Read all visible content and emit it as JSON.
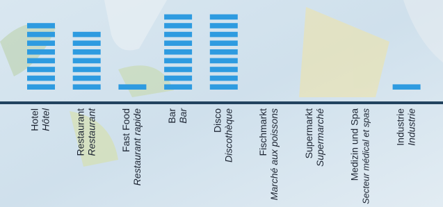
{
  "chart_data": {
    "type": "block-bar",
    "categories": [
      "Hotel",
      "Restaurant",
      "Fast Food",
      "Bar",
      "Disco",
      "Fischmarkt",
      "Supermarkt",
      "Medizin und Spa",
      "Industrie"
    ],
    "categories_translation": [
      "Hôtel",
      "Restaurant",
      "Restaurant rapide",
      "Bar",
      "Discothèque",
      "Marché aux poissons",
      "Supermarché",
      "Secteur médical et spas",
      "Industrie"
    ],
    "values": [
      8,
      7,
      1,
      9,
      9,
      0,
      0,
      0,
      1
    ],
    "color": "#2e9be0"
  }
}
